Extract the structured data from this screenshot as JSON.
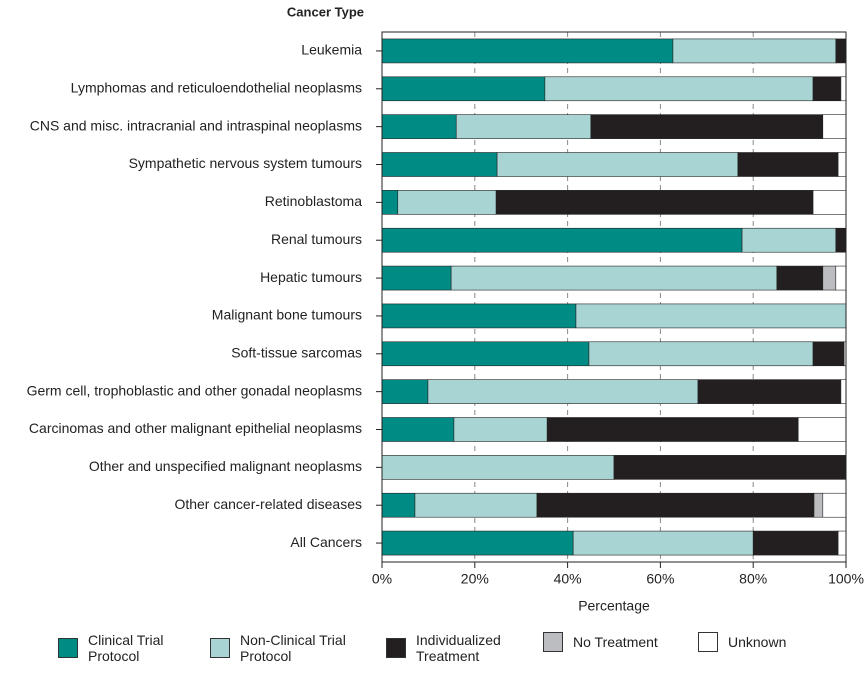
{
  "chart_data": {
    "type": "stacked-barh",
    "y_axis_title": "Cancer Type",
    "x_axis_title": "Percentage",
    "categories": [
      "Leukemia",
      "Lymphomas and reticuloendothelial neoplasms",
      "CNS and misc. intracranial and intraspinal neoplasms",
      "Sympathetic nervous system tumours",
      "Retinoblastoma",
      "Renal tumours",
      "Hepatic tumours",
      "Malignant bone tumours",
      "Soft-tissue sarcomas",
      "Germ cell, trophoblastic and other gonadal neoplasms",
      "Carcinomas and other malignant epithelial neoplasms",
      "Other and unspecified malignant neoplasms",
      "Other cancer-related diseases",
      "All Cancers"
    ],
    "series": [
      {
        "name": "Clinical Trial Protocol",
        "color": "#008b84",
        "values": [
          62.7,
          35.1,
          16,
          24.8,
          3.4,
          77.6,
          14.9,
          41.8,
          44.6,
          9.9,
          15.5,
          0,
          7.1,
          41.2
        ]
      },
      {
        "name": "Non-Clinical Trial Protocol",
        "color": "#a8d5d3",
        "values": [
          35.1,
          57.8,
          29,
          51.9,
          21.2,
          20.2,
          70.2,
          58.2,
          48.3,
          58.2,
          20.1,
          50,
          26.3,
          38.8
        ]
      },
      {
        "name": "Individualized Treatment",
        "color": "#231f20",
        "values": [
          2.2,
          6,
          50,
          21.6,
          68.3,
          2.2,
          9.9,
          0,
          6.7,
          30.8,
          54.1,
          50,
          59.7,
          18.3
        ]
      },
      {
        "name": "No Treatment",
        "color": "#bcbdc0",
        "values": [
          0,
          0,
          0,
          0,
          0,
          0,
          2.8,
          0,
          0,
          0,
          0,
          0,
          1.9,
          0
        ]
      },
      {
        "name": "Unknown",
        "color": "#ffffff",
        "values": [
          0,
          1.1,
          5,
          1.7,
          7.1,
          0,
          2.2,
          0,
          0.4,
          1.1,
          10.3,
          0,
          5,
          1.7
        ]
      }
    ],
    "xlim": [
      0,
      100
    ],
    "xticks": [
      {
        "value": 0,
        "label": "0%"
      },
      {
        "value": 20,
        "label": "20%"
      },
      {
        "value": 40,
        "label": "40%"
      },
      {
        "value": 60,
        "label": "60%"
      },
      {
        "value": 80,
        "label": "80%"
      },
      {
        "value": 100,
        "label": "100%"
      }
    ],
    "grid": true
  }
}
